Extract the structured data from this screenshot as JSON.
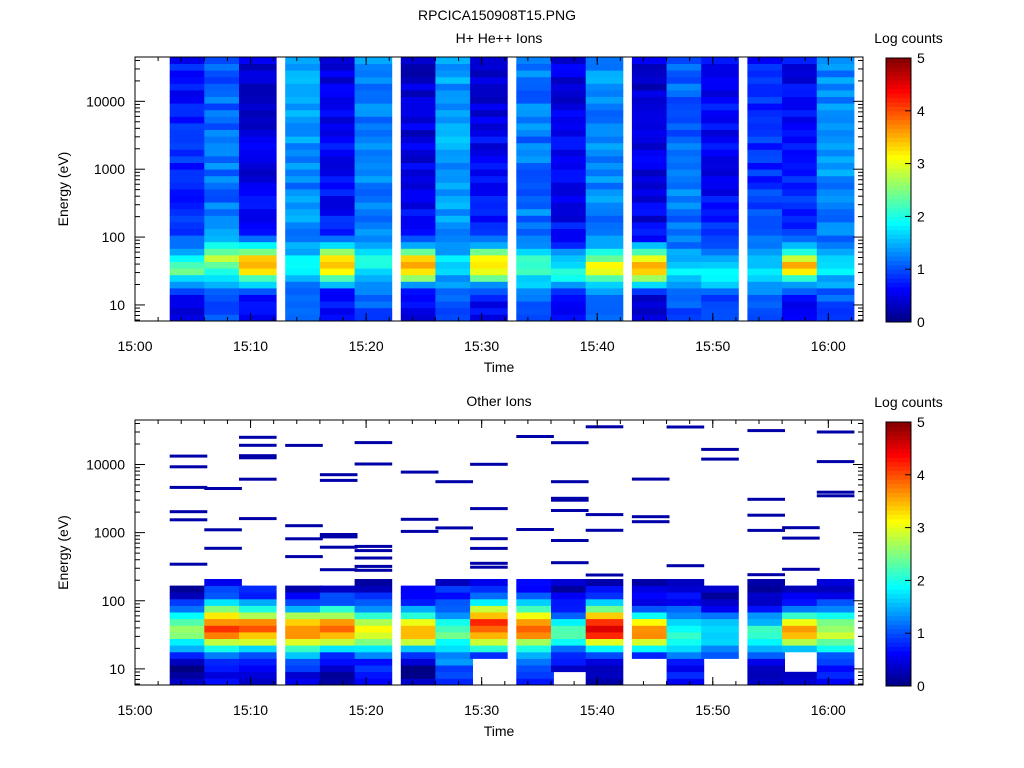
{
  "figure_title": "RPCICA150908T15.PNG",
  "chart_data": [
    {
      "type": "heatmap",
      "title": "H+ He++ Ions",
      "xlabel": "Time",
      "ylabel": "Energy (eV)",
      "x_ticks": [
        "15:00",
        "15:10",
        "15:20",
        "15:30",
        "15:40",
        "15:50",
        "16:00"
      ],
      "x_range": [
        "15:00",
        "16:03"
      ],
      "y_scale": "log",
      "y_ticks": [
        "10",
        "100",
        "1000",
        "10000"
      ],
      "y_range": [
        5.8,
        45000
      ],
      "colorbar": {
        "label": "Log counts",
        "range": [
          0,
          5
        ],
        "ticks": [
          "0",
          "1",
          "2",
          "3",
          "4",
          "5"
        ]
      },
      "time_bins": [
        "15:03",
        "15:06",
        "15:09",
        "15:13",
        "15:16",
        "15:19",
        "15:23",
        "15:26",
        "15:29",
        "15:33",
        "15:36",
        "15:39",
        "15:43",
        "15:46",
        "15:49",
        "15:53",
        "15:56",
        "15:59"
      ],
      "profile": {
        "energy_ev": [
          7,
          10,
          13,
          17,
          22,
          28,
          36,
          46,
          58,
          75,
          100,
          200,
          1000,
          10000,
          40000
        ],
        "log_counts_by_bin": [
          [
            0.3,
            0.5,
            0.6,
            1.0,
            1.5,
            2.1,
            2.4,
            2.0,
            1.6,
            1.2,
            1.0,
            0.9,
            0.8,
            0.7,
            0.7
          ],
          [
            1.0,
            1.0,
            1.0,
            1.2,
            1.6,
            2.0,
            2.4,
            2.8,
            2.5,
            1.8,
            1.4,
            1.2,
            1.2,
            1.1,
            1.1
          ],
          [
            0.5,
            0.5,
            0.6,
            1.0,
            1.8,
            2.9,
            3.6,
            3.5,
            2.8,
            1.7,
            0.8,
            0.6,
            0.5,
            0.4,
            0.4
          ],
          [
            1.0,
            1.0,
            1.1,
            1.2,
            1.4,
            1.8,
            2.0,
            1.8,
            1.5,
            1.3,
            1.3,
            1.3,
            1.3,
            1.4,
            1.4
          ],
          [
            0.6,
            0.6,
            0.6,
            0.9,
            1.8,
            3.0,
            3.4,
            3.4,
            2.6,
            1.6,
            0.9,
            0.7,
            0.6,
            0.5,
            0.5
          ],
          [
            1.0,
            1.1,
            1.2,
            1.4,
            1.6,
            1.8,
            1.9,
            1.9,
            1.6,
            1.4,
            1.3,
            1.3,
            1.3,
            1.3,
            1.3
          ],
          [
            0.4,
            0.5,
            0.6,
            1.0,
            1.9,
            3.1,
            3.5,
            3.4,
            2.5,
            1.6,
            0.8,
            0.6,
            0.5,
            0.4,
            0.4
          ],
          [
            1.0,
            1.0,
            1.0,
            1.1,
            1.3,
            1.6,
            1.9,
            1.7,
            1.5,
            1.4,
            1.3,
            1.4,
            1.4,
            1.4,
            1.4
          ],
          [
            0.5,
            0.6,
            0.7,
            1.0,
            1.8,
            2.9,
            3.4,
            3.3,
            2.6,
            1.7,
            0.9,
            0.7,
            0.6,
            0.5,
            0.5
          ],
          [
            1.0,
            1.0,
            1.1,
            1.3,
            1.6,
            2.0,
            2.4,
            2.2,
            1.8,
            1.4,
            1.2,
            1.2,
            1.2,
            1.2,
            1.2
          ],
          [
            0.6,
            0.6,
            0.7,
            1.2,
            1.8,
            2.4,
            2.0,
            1.7,
            1.4,
            1.0,
            0.7,
            0.6,
            0.6,
            0.5,
            0.5
          ],
          [
            1.0,
            1.0,
            1.1,
            1.4,
            1.9,
            2.7,
            3.1,
            2.8,
            2.0,
            1.4,
            1.3,
            1.3,
            1.3,
            1.3,
            1.3
          ],
          [
            0.3,
            0.4,
            0.5,
            1.0,
            1.9,
            3.0,
            3.5,
            3.3,
            2.4,
            1.5,
            0.6,
            0.5,
            0.5,
            0.4,
            0.4
          ],
          [
            1.0,
            1.0,
            1.0,
            1.2,
            1.6,
            1.9,
            1.8,
            1.6,
            1.4,
            1.2,
            1.2,
            1.2,
            1.2,
            1.1,
            1.1
          ],
          [
            0.8,
            0.8,
            0.9,
            1.2,
            1.6,
            1.8,
            1.7,
            1.5,
            1.3,
            1.0,
            0.8,
            0.7,
            0.6,
            0.6,
            0.6
          ],
          [
            0.9,
            0.9,
            1.0,
            1.2,
            1.5,
            1.7,
            1.6,
            1.5,
            1.3,
            1.1,
            1.0,
            0.9,
            0.8,
            0.8,
            0.8
          ],
          [
            0.5,
            0.5,
            0.6,
            1.0,
            1.6,
            2.7,
            3.4,
            3.3,
            2.4,
            1.5,
            1.0,
            0.8,
            0.7,
            0.6,
            0.6
          ],
          [
            0.9,
            0.9,
            1.0,
            1.1,
            1.4,
            1.7,
            1.8,
            1.6,
            1.4,
            1.3,
            1.2,
            1.3,
            1.3,
            1.3,
            1.3
          ]
        ]
      }
    },
    {
      "type": "heatmap",
      "title": "Other Ions",
      "xlabel": "Time",
      "ylabel": "Energy (eV)",
      "x_ticks": [
        "15:00",
        "15:10",
        "15:20",
        "15:30",
        "15:40",
        "15:50",
        "16:00"
      ],
      "x_range": [
        "15:00",
        "16:03"
      ],
      "y_scale": "log",
      "y_ticks": [
        "10",
        "100",
        "1000",
        "10000"
      ],
      "y_range": [
        5.8,
        45000
      ],
      "colorbar": {
        "label": "Log counts",
        "range": [
          0,
          5
        ],
        "ticks": [
          "0",
          "1",
          "2",
          "3",
          "4",
          "5"
        ]
      },
      "time_bins": [
        "15:03",
        "15:06",
        "15:09",
        "15:13",
        "15:16",
        "15:19",
        "15:23",
        "15:26",
        "15:29",
        "15:33",
        "15:36",
        "15:39",
        "15:43",
        "15:46",
        "15:49",
        "15:53",
        "15:56",
        "15:59"
      ],
      "profile": {
        "energy_ev": [
          7,
          10,
          13,
          17,
          22,
          28,
          36,
          46,
          58,
          75,
          100,
          150,
          200
        ],
        "log_counts_by_bin": [
          [
            0.2,
            0.2,
            0.4,
            0.8,
            1.6,
            2.2,
            2.6,
            2.4,
            1.8,
            1.1,
            0.6,
            0.2,
            null
          ],
          [
            0.6,
            0.8,
            1.0,
            1.4,
            2.4,
            3.4,
            4.2,
            4.0,
            3.4,
            2.4,
            1.4,
            0.8,
            0.4
          ],
          [
            0.4,
            0.5,
            0.7,
            1.2,
            2.2,
            3.2,
            3.8,
            3.7,
            3.0,
            2.0,
            1.2,
            0.6,
            null
          ],
          [
            0.5,
            0.7,
            1.0,
            1.5,
            2.5,
            3.3,
            3.8,
            3.6,
            2.8,
            1.6,
            0.6,
            0.3,
            null
          ],
          [
            0.3,
            0.4,
            0.6,
            1.1,
            2.2,
            3.3,
            3.9,
            3.8,
            3.1,
            2.0,
            1.0,
            0.5,
            null
          ],
          [
            0.5,
            0.7,
            0.9,
            1.3,
            2.2,
            2.8,
            3.0,
            2.9,
            2.2,
            1.5,
            0.9,
            0.5,
            0.3
          ],
          [
            0.2,
            0.2,
            0.4,
            1.0,
            2.2,
            3.4,
            3.7,
            3.2,
            2.0,
            1.3,
            0.8,
            0.4,
            null
          ],
          [
            0.9,
            1.0,
            1.2,
            1.5,
            1.9,
            2.2,
            2.3,
            2.0,
            1.6,
            1.2,
            1.0,
            0.7,
            0.4
          ],
          [
            null,
            null,
            0.6,
            1.2,
            2.4,
            3.5,
            4.0,
            4.1,
            3.8,
            2.8,
            1.6,
            0.9,
            0.5
          ],
          [
            0.7,
            0.8,
            1.0,
            1.4,
            2.3,
            3.3,
            3.9,
            3.8,
            3.1,
            2.1,
            1.3,
            0.7,
            0.4
          ],
          [
            null,
            0.5,
            0.7,
            1.0,
            1.6,
            2.0,
            2.2,
            1.9,
            1.3,
            0.8,
            0.5,
            0.3,
            0.2
          ],
          [
            0.4,
            0.5,
            0.7,
            1.2,
            2.4,
            3.6,
            4.6,
            4.4,
            3.4,
            2.3,
            1.3,
            0.6,
            0.3
          ],
          [
            null,
            null,
            0.4,
            0.9,
            2.2,
            3.4,
            3.6,
            3.2,
            2.2,
            1.2,
            0.5,
            0.3,
            0.2
          ],
          [
            0.6,
            0.7,
            0.9,
            1.3,
            1.8,
            2.1,
            2.0,
            1.7,
            1.3,
            1.0,
            0.7,
            0.4,
            0.2
          ],
          [
            null,
            null,
            0.9,
            1.2,
            1.6,
            1.8,
            1.7,
            1.5,
            1.2,
            0.8,
            0.4,
            0.2,
            null
          ],
          [
            0.4,
            0.4,
            0.7,
            1.1,
            1.6,
            2.0,
            2.1,
            1.8,
            1.3,
            0.8,
            0.5,
            0.3,
            0.2
          ],
          [
            0.2,
            0.3,
            null,
            0.9,
            2.1,
            3.4,
            3.9,
            3.3,
            2.2,
            1.3,
            0.7,
            0.4,
            null
          ],
          [
            0.6,
            0.7,
            1.0,
            1.3,
            2.0,
            2.7,
            2.9,
            2.6,
            2.0,
            1.4,
            0.9,
            0.5,
            0.3
          ]
        ]
      }
    }
  ]
}
